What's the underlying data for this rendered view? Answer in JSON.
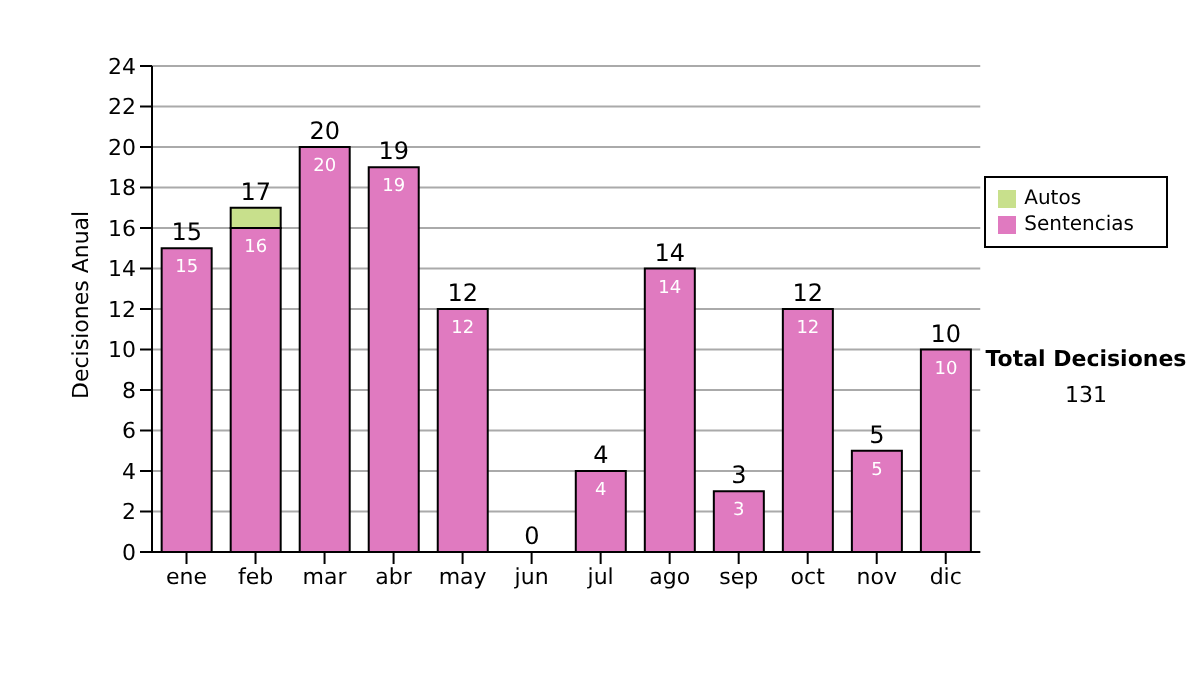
{
  "chart_data": {
    "type": "bar",
    "stacked": true,
    "ylabel": "Decisiones Anual",
    "categories": [
      "ene",
      "feb",
      "mar",
      "abr",
      "may",
      "jun",
      "jul",
      "ago",
      "sep",
      "oct",
      "nov",
      "dic"
    ],
    "series": [
      {
        "name": "Sentencias",
        "color": "#e07ac0",
        "values": [
          15,
          16,
          20,
          19,
          12,
          0,
          4,
          14,
          3,
          12,
          5,
          10
        ],
        "value_labels": [
          "15",
          "16",
          "20",
          "19",
          "12",
          null,
          "4",
          "14",
          "3",
          "12",
          "5",
          "10"
        ]
      },
      {
        "name": "Autos",
        "color": "#c8e08c",
        "values": [
          0,
          1,
          0,
          0,
          0,
          0,
          0,
          0,
          0,
          0,
          0,
          0
        ]
      }
    ],
    "totals": [
      "15",
      "17",
      "20",
      "19",
      "12",
      "0",
      "4",
      "14",
      "3",
      "12",
      "5",
      "10"
    ],
    "ylim": [
      0,
      24
    ],
    "yticks": [
      0,
      2,
      4,
      6,
      8,
      10,
      12,
      14,
      16,
      18,
      20,
      22,
      24
    ],
    "grid": "y",
    "legend": "right",
    "annotations": [
      "Total Decisiones",
      "131"
    ]
  }
}
